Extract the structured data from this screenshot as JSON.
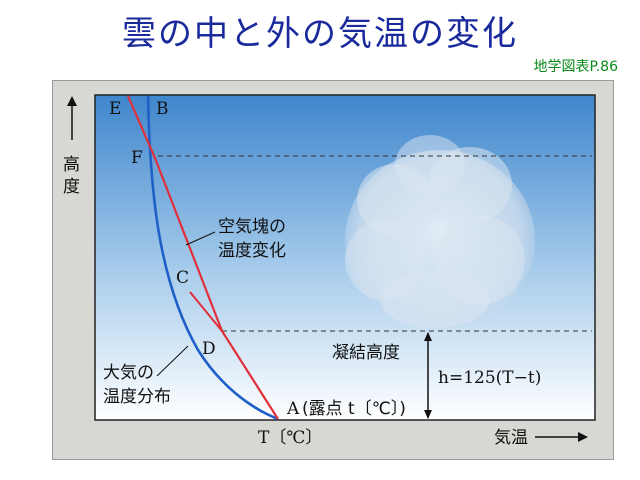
{
  "slide": {
    "title": "雲の中と外の気温の変化",
    "source": "地学図表P.86"
  },
  "diagram": {
    "point_labels": {
      "E": "E",
      "B": "B",
      "F": "F",
      "C": "C",
      "D": "D",
      "A": "A"
    },
    "annotation_A": "(露点 t〔℃〕)",
    "axis_y_label": "高度",
    "axis_x_label": "気温",
    "axis_x_tick": "T〔℃〕",
    "parcel_label_line1": "空気塊の",
    "parcel_label_line2": "温度変化",
    "env_label_line1": "大気の",
    "env_label_line2": "温度分布",
    "condensation_label": "凝結高度",
    "formula": "h=125(T−t)"
  },
  "colors": {
    "title": "#1a2a9c",
    "source": "#0a8a1a",
    "parcel_line": "#e0303a",
    "env_line": "#1f5fc8",
    "sky_top": "#3f86cc",
    "sky_bottom": "#ffffff"
  }
}
